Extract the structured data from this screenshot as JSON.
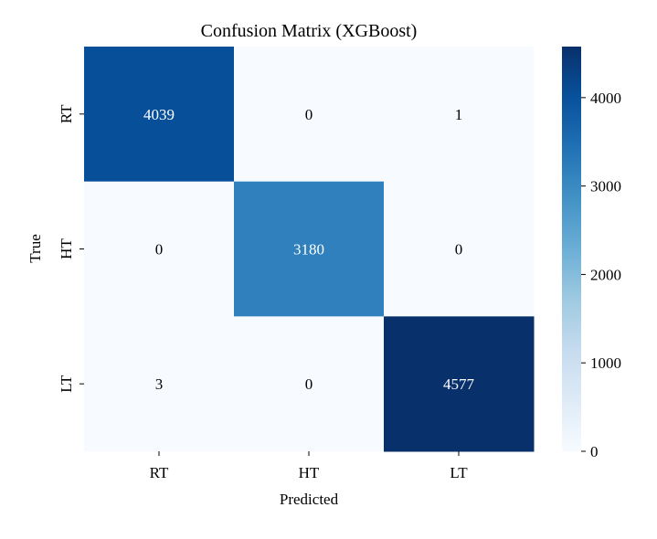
{
  "chart_data": {
    "type": "heatmap",
    "title": "Confusion Matrix (XGBoost)",
    "xlabel": "Predicted",
    "ylabel": "True",
    "x_categories": [
      "RT",
      "HT",
      "LT"
    ],
    "y_categories": [
      "RT",
      "HT",
      "LT"
    ],
    "values": [
      [
        4039,
        0,
        1
      ],
      [
        0,
        3180,
        0
      ],
      [
        3,
        0,
        4577
      ]
    ],
    "colormap": "Blues",
    "colorbar": {
      "range": [
        0,
        4577
      ],
      "ticks": [
        0,
        1000,
        2000,
        3000,
        4000
      ]
    }
  }
}
